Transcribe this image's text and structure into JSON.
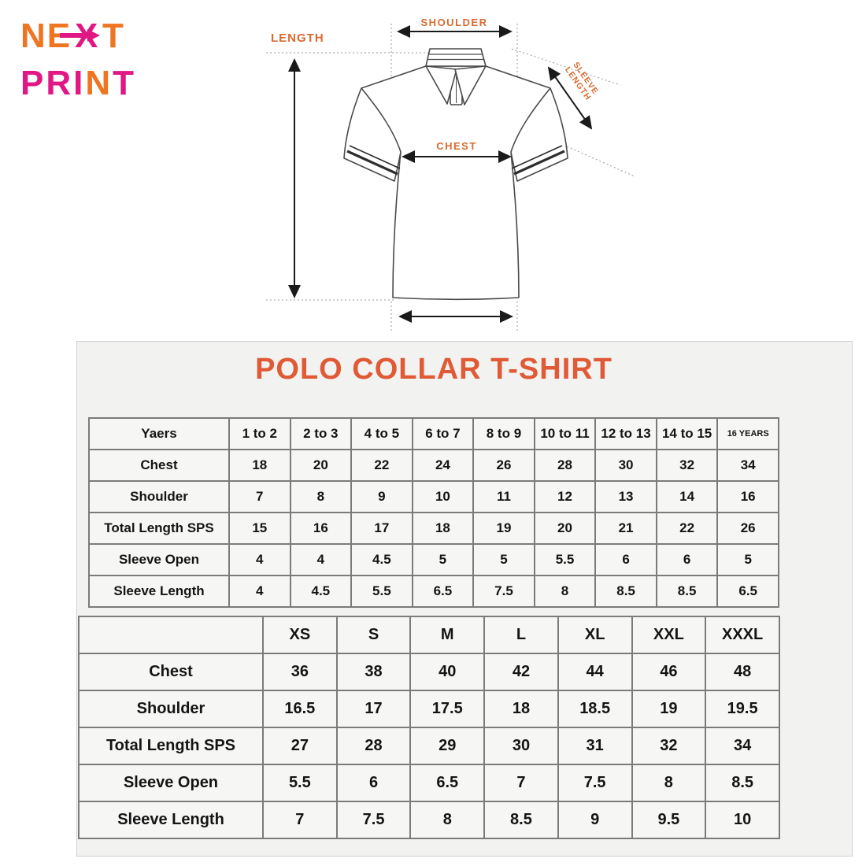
{
  "logo": {
    "ne": "NE",
    "x": "X",
    "t1": "T",
    "pri": "PRI",
    "n": "N",
    "t2": "T"
  },
  "diagram": {
    "labels": {
      "length": "LENGTH",
      "shoulder": "SHOULDER",
      "chest": "CHEST",
      "sleeve_word1": "SLEEVE",
      "sleeve_word2": "LENGTH"
    }
  },
  "panel": {
    "title": "POLO COLLAR T-SHIRT"
  },
  "kids_table": {
    "header": [
      "Yaers",
      "1 to 2",
      "2 to 3",
      "4 to 5",
      "6 to 7",
      "8 to 9",
      "10 to 11",
      "12 to 13",
      "14 to 15",
      "16 YEARS"
    ],
    "rows": [
      {
        "label": "Chest",
        "values": [
          18,
          20,
          22,
          24,
          26,
          28,
          30,
          32,
          34
        ]
      },
      {
        "label": "Shoulder",
        "values": [
          7,
          8,
          9,
          10,
          11,
          12,
          13,
          14,
          16
        ]
      },
      {
        "label": "Total Length SPS",
        "values": [
          15,
          16,
          17,
          18,
          19,
          20,
          21,
          22,
          26
        ]
      },
      {
        "label": "Sleeve Open",
        "values": [
          4,
          4,
          4.5,
          5,
          5,
          5.5,
          6,
          6,
          5
        ]
      },
      {
        "label": "Sleeve Length",
        "values": [
          4,
          4.5,
          5.5,
          6.5,
          7.5,
          8,
          8.5,
          8.5,
          6.5
        ]
      }
    ]
  },
  "adult_table": {
    "header": [
      "",
      "XS",
      "S",
      "M",
      "L",
      "XL",
      "XXL",
      "XXXL"
    ],
    "rows": [
      {
        "label": "Chest",
        "values": [
          36,
          38,
          40,
          42,
          44,
          46,
          48
        ]
      },
      {
        "label": "Shoulder",
        "values": [
          16.5,
          17,
          17.5,
          18,
          18.5,
          19,
          19.5
        ]
      },
      {
        "label": "Total Length SPS",
        "values": [
          27,
          28,
          29,
          30,
          31,
          32,
          34
        ]
      },
      {
        "label": "Sleeve Open",
        "values": [
          5.5,
          6,
          6.5,
          7,
          7.5,
          8,
          8.5
        ]
      },
      {
        "label": "Sleeve Length",
        "values": [
          7,
          7.5,
          8,
          8.5,
          9,
          9.5,
          10
        ]
      }
    ]
  },
  "colors": {
    "title_orange": "#e05a35",
    "diagram_label_orange": "#d96a2e",
    "logo_orange": "#ee7622",
    "logo_magenta": "#e01784",
    "table_border_gray": "#7b7b7b"
  }
}
